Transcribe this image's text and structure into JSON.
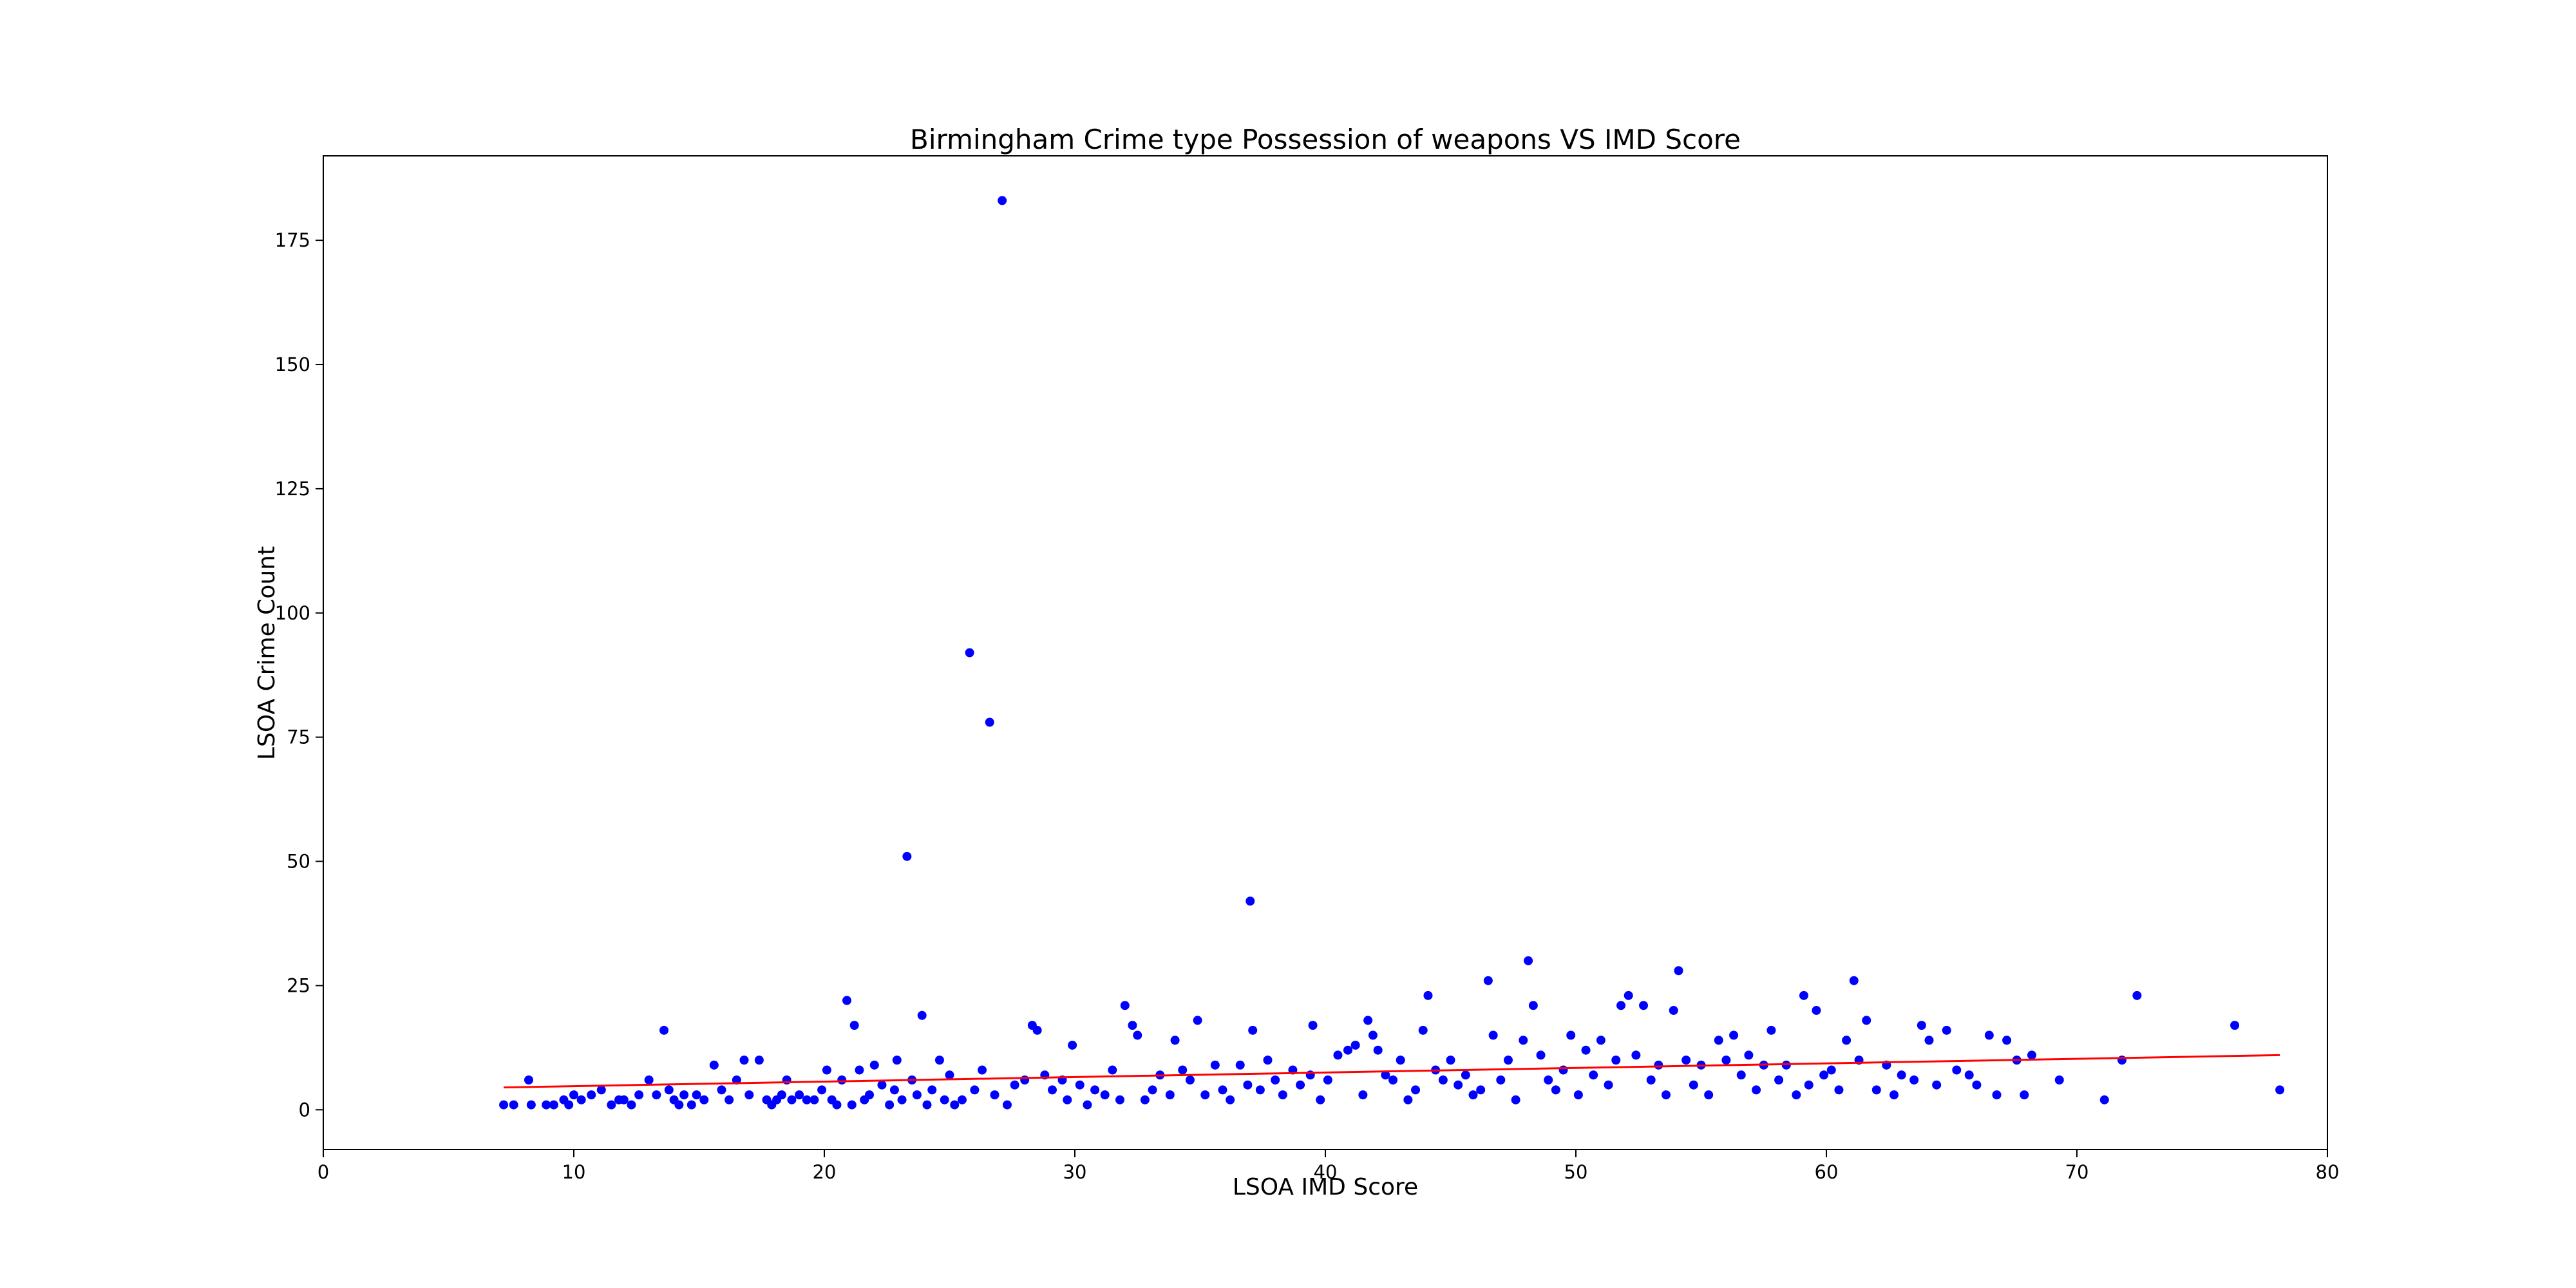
{
  "chart_data": {
    "type": "scatter",
    "title": "Birmingham Crime type Possession of weapons VS IMD Score",
    "xlabel": "LSOA IMD Score",
    "ylabel": "LSOA Crime Count",
    "xlim": [
      0,
      80
    ],
    "ylim": [
      -8,
      192
    ],
    "xticks": [
      0,
      10,
      20,
      30,
      40,
      50,
      60,
      70,
      80
    ],
    "yticks": [
      0,
      25,
      50,
      75,
      100,
      125,
      150,
      175
    ],
    "grid": false,
    "legend": "none",
    "colors": {
      "points": "#0000ff",
      "trend": "#ff0000",
      "frame": "#000000"
    },
    "trendline": {
      "x": [
        7.2,
        78.1
      ],
      "y": [
        4.5,
        11.0
      ]
    },
    "points": [
      [
        7.2,
        1
      ],
      [
        7.6,
        1
      ],
      [
        8.2,
        6
      ],
      [
        8.3,
        1
      ],
      [
        8.9,
        1
      ],
      [
        9.2,
        1
      ],
      [
        9.6,
        2
      ],
      [
        9.8,
        1
      ],
      [
        10.0,
        3
      ],
      [
        10.3,
        2
      ],
      [
        10.7,
        3
      ],
      [
        11.1,
        4
      ],
      [
        11.5,
        1
      ],
      [
        11.8,
        2
      ],
      [
        12.0,
        2
      ],
      [
        12.3,
        1
      ],
      [
        12.6,
        3
      ],
      [
        13.0,
        6
      ],
      [
        13.3,
        3
      ],
      [
        13.6,
        16
      ],
      [
        13.8,
        4
      ],
      [
        14.0,
        2
      ],
      [
        14.2,
        1
      ],
      [
        14.4,
        3
      ],
      [
        14.7,
        1
      ],
      [
        14.9,
        3
      ],
      [
        15.2,
        2
      ],
      [
        15.6,
        9
      ],
      [
        15.9,
        4
      ],
      [
        16.2,
        2
      ],
      [
        16.5,
        6
      ],
      [
        16.8,
        10
      ],
      [
        17.0,
        3
      ],
      [
        17.4,
        10
      ],
      [
        17.7,
        2
      ],
      [
        17.9,
        1
      ],
      [
        18.1,
        2
      ],
      [
        18.3,
        3
      ],
      [
        18.5,
        6
      ],
      [
        18.7,
        2
      ],
      [
        19.0,
        3
      ],
      [
        19.3,
        2
      ],
      [
        19.6,
        2
      ],
      [
        19.9,
        4
      ],
      [
        20.1,
        8
      ],
      [
        20.3,
        2
      ],
      [
        20.5,
        1
      ],
      [
        20.7,
        6
      ],
      [
        20.9,
        22
      ],
      [
        21.1,
        1
      ],
      [
        21.2,
        17
      ],
      [
        21.4,
        8
      ],
      [
        21.6,
        2
      ],
      [
        21.8,
        3
      ],
      [
        22.0,
        9
      ],
      [
        22.3,
        5
      ],
      [
        22.6,
        1
      ],
      [
        22.8,
        4
      ],
      [
        22.9,
        10
      ],
      [
        23.1,
        2
      ],
      [
        23.3,
        51
      ],
      [
        23.5,
        6
      ],
      [
        23.7,
        3
      ],
      [
        23.9,
        19
      ],
      [
        24.1,
        1
      ],
      [
        24.3,
        4
      ],
      [
        24.6,
        10
      ],
      [
        24.8,
        2
      ],
      [
        25.0,
        7
      ],
      [
        25.2,
        1
      ],
      [
        25.5,
        2
      ],
      [
        25.8,
        92
      ],
      [
        26.0,
        4
      ],
      [
        26.3,
        8
      ],
      [
        26.6,
        78
      ],
      [
        26.8,
        3
      ],
      [
        27.1,
        183
      ],
      [
        27.3,
        1
      ],
      [
        27.6,
        5
      ],
      [
        28.0,
        6
      ],
      [
        28.3,
        17
      ],
      [
        28.5,
        16
      ],
      [
        28.8,
        7
      ],
      [
        29.1,
        4
      ],
      [
        29.5,
        6
      ],
      [
        29.7,
        2
      ],
      [
        29.9,
        13
      ],
      [
        30.2,
        5
      ],
      [
        30.5,
        1
      ],
      [
        30.8,
        4
      ],
      [
        31.2,
        3
      ],
      [
        31.5,
        8
      ],
      [
        31.8,
        2
      ],
      [
        32.0,
        21
      ],
      [
        32.3,
        17
      ],
      [
        32.5,
        15
      ],
      [
        32.8,
        2
      ],
      [
        33.1,
        4
      ],
      [
        33.4,
        7
      ],
      [
        33.8,
        3
      ],
      [
        34.0,
        14
      ],
      [
        34.3,
        8
      ],
      [
        34.6,
        6
      ],
      [
        34.9,
        18
      ],
      [
        35.2,
        3
      ],
      [
        35.6,
        9
      ],
      [
        35.9,
        4
      ],
      [
        36.2,
        2
      ],
      [
        36.6,
        9
      ],
      [
        36.9,
        5
      ],
      [
        37.0,
        42
      ],
      [
        37.1,
        16
      ],
      [
        37.4,
        4
      ],
      [
        37.7,
        10
      ],
      [
        38.0,
        6
      ],
      [
        38.3,
        3
      ],
      [
        38.7,
        8
      ],
      [
        39.0,
        5
      ],
      [
        39.4,
        7
      ],
      [
        39.5,
        17
      ],
      [
        39.8,
        2
      ],
      [
        40.1,
        6
      ],
      [
        40.5,
        11
      ],
      [
        40.9,
        12
      ],
      [
        41.2,
        13
      ],
      [
        41.5,
        3
      ],
      [
        41.7,
        18
      ],
      [
        41.9,
        15
      ],
      [
        42.1,
        12
      ],
      [
        42.4,
        7
      ],
      [
        42.7,
        6
      ],
      [
        43.0,
        10
      ],
      [
        43.3,
        2
      ],
      [
        43.6,
        4
      ],
      [
        43.9,
        16
      ],
      [
        44.1,
        23
      ],
      [
        44.4,
        8
      ],
      [
        44.7,
        6
      ],
      [
        45.0,
        10
      ],
      [
        45.3,
        5
      ],
      [
        45.6,
        7
      ],
      [
        45.9,
        3
      ],
      [
        46.2,
        4
      ],
      [
        46.5,
        26
      ],
      [
        46.7,
        15
      ],
      [
        47.0,
        6
      ],
      [
        47.3,
        10
      ],
      [
        47.6,
        2
      ],
      [
        47.9,
        14
      ],
      [
        48.1,
        30
      ],
      [
        48.3,
        21
      ],
      [
        48.6,
        11
      ],
      [
        48.9,
        6
      ],
      [
        49.2,
        4
      ],
      [
        49.5,
        8
      ],
      [
        49.8,
        15
      ],
      [
        50.1,
        3
      ],
      [
        50.4,
        12
      ],
      [
        50.7,
        7
      ],
      [
        51.0,
        14
      ],
      [
        51.3,
        5
      ],
      [
        51.6,
        10
      ],
      [
        51.8,
        21
      ],
      [
        52.1,
        23
      ],
      [
        52.4,
        11
      ],
      [
        52.7,
        21
      ],
      [
        53.0,
        6
      ],
      [
        53.3,
        9
      ],
      [
        53.6,
        3
      ],
      [
        53.9,
        20
      ],
      [
        54.1,
        28
      ],
      [
        54.4,
        10
      ],
      [
        54.7,
        5
      ],
      [
        55.0,
        9
      ],
      [
        55.3,
        3
      ],
      [
        55.7,
        14
      ],
      [
        56.0,
        10
      ],
      [
        56.3,
        15
      ],
      [
        56.6,
        7
      ],
      [
        56.9,
        11
      ],
      [
        57.2,
        4
      ],
      [
        57.5,
        9
      ],
      [
        57.8,
        16
      ],
      [
        58.1,
        6
      ],
      [
        58.4,
        9
      ],
      [
        58.8,
        3
      ],
      [
        59.1,
        23
      ],
      [
        59.3,
        5
      ],
      [
        59.6,
        20
      ],
      [
        59.9,
        7
      ],
      [
        60.2,
        8
      ],
      [
        60.5,
        4
      ],
      [
        60.8,
        14
      ],
      [
        61.1,
        26
      ],
      [
        61.3,
        10
      ],
      [
        61.6,
        18
      ],
      [
        62.0,
        4
      ],
      [
        62.4,
        9
      ],
      [
        62.7,
        3
      ],
      [
        63.0,
        7
      ],
      [
        63.5,
        6
      ],
      [
        63.8,
        17
      ],
      [
        64.1,
        14
      ],
      [
        64.4,
        5
      ],
      [
        64.8,
        16
      ],
      [
        65.2,
        8
      ],
      [
        65.7,
        7
      ],
      [
        66.0,
        5
      ],
      [
        66.5,
        15
      ],
      [
        66.8,
        3
      ],
      [
        67.2,
        14
      ],
      [
        67.6,
        10
      ],
      [
        67.9,
        3
      ],
      [
        68.2,
        11
      ],
      [
        69.3,
        6
      ],
      [
        71.1,
        2
      ],
      [
        71.8,
        10
      ],
      [
        72.4,
        23
      ],
      [
        76.3,
        17
      ],
      [
        78.1,
        4
      ]
    ]
  }
}
